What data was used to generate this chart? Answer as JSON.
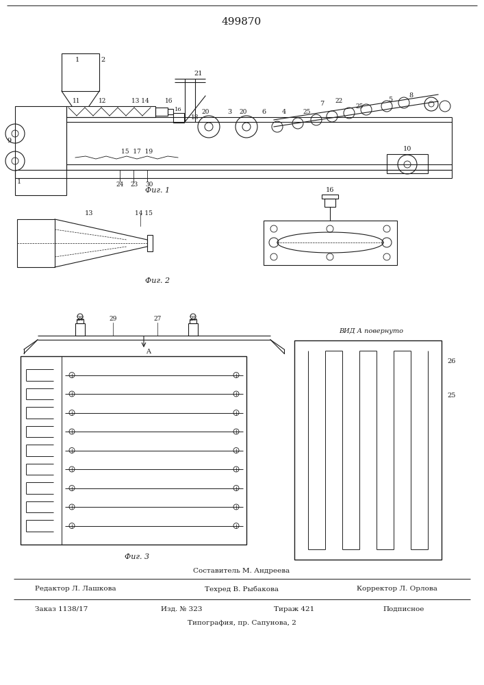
{
  "title": "499870",
  "bg_color": "#ffffff",
  "fig1_caption": "Фиг. 1",
  "fig2_caption": "Фиг. 2",
  "fig3_caption": "Фиг. 3",
  "footer_line1": "Составитель М. Андреева",
  "footer_col1_label": "Редактор Л. Лашкова",
  "footer_col2_label": "Техред В. Рыбакова",
  "footer_col3_label": "Корректор Л. Орлова",
  "footer_row2_col1": "Заказ 1138/17",
  "footer_row2_col2": "Изд. № 323",
  "footer_row2_col3": "Тираж 421",
  "footer_row2_col4": "Подписное",
  "footer_row3": "Типография, пр. Сапунова, 2",
  "line_color": "#1a1a1a",
  "font_color": "#1a1a1a"
}
